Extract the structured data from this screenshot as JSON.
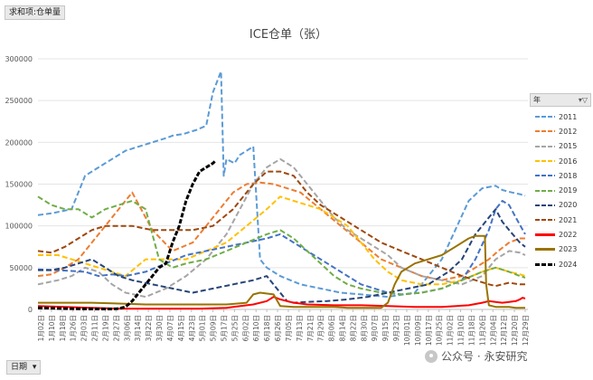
{
  "pivot": {
    "top_label": "求和项:仓单量",
    "bottom_label": "日期",
    "dropdown_glyph": "▾"
  },
  "legend_header": {
    "label": "年",
    "filter_icon": "filter-icon"
  },
  "watermark": {
    "text": "公众号 · 永安研究"
  },
  "chart_data": {
    "type": "line",
    "title": "ICE仓单（张）",
    "xlabel": "",
    "ylabel": "",
    "ylim": [
      0,
      300000
    ],
    "yticks": [
      0,
      50000,
      100000,
      150000,
      200000,
      250000,
      300000
    ],
    "xlim": [
      0,
      364
    ],
    "x_tick_labels": [
      "1月02日",
      "1月10日",
      "1月18日",
      "1月26日",
      "2月03日",
      "2月11日",
      "2月19日",
      "2月27日",
      "3月06日",
      "3月14日",
      "3月22日",
      "3月30日",
      "4月07日",
      "4月15日",
      "4月23日",
      "5月01日",
      "5月09日",
      "5月17日",
      "5月25日",
      "6月02日",
      "6月10日",
      "6月18日",
      "6月26日",
      "7月05日",
      "7月13日",
      "7月21日",
      "7月29日",
      "8月06日",
      "8月14日",
      "8月22日",
      "8月30日",
      "9月07日",
      "9月15日",
      "9月23日",
      "10月01日",
      "10月09日",
      "10月17日",
      "10月25日",
      "11月02日",
      "11月10日",
      "11月18日",
      "11月26日",
      "12月04日",
      "12月12日",
      "12月20日",
      "12月29日"
    ],
    "grid": true,
    "legend_position": "right",
    "series": [
      {
        "name": "2011",
        "color": "#5B9BD5",
        "dash": true,
        "x": [
          0,
          10,
          25,
          35,
          45,
          55,
          65,
          75,
          85,
          95,
          100,
          108,
          118,
          125,
          130,
          136,
          138,
          140,
          146,
          150,
          155,
          160,
          165,
          170,
          180,
          195,
          210,
          225,
          240,
          260,
          280,
          300,
          320,
          330,
          340,
          345,
          352,
          358,
          362
        ],
        "y": [
          113000,
          115000,
          120000,
          160000,
          170000,
          180000,
          190000,
          195000,
          200000,
          205000,
          208000,
          210000,
          215000,
          220000,
          260000,
          285000,
          160000,
          180000,
          175000,
          185000,
          190000,
          195000,
          60000,
          50000,
          40000,
          30000,
          25000,
          20000,
          18000,
          15000,
          20000,
          60000,
          130000,
          145000,
          148000,
          143000,
          140000,
          138000,
          136000
        ]
      },
      {
        "name": "2012",
        "color": "#ED7D31",
        "dash": true,
        "x": [
          0,
          10,
          20,
          30,
          40,
          50,
          60,
          70,
          85,
          100,
          115,
          125,
          135,
          145,
          155,
          165,
          175,
          185,
          195,
          210,
          225,
          240,
          255,
          270,
          285,
          300,
          315,
          325,
          335,
          342,
          350,
          358,
          362
        ],
        "y": [
          40000,
          42000,
          50000,
          60000,
          80000,
          100000,
          120000,
          140000,
          95000,
          70000,
          80000,
          100000,
          120000,
          140000,
          150000,
          152000,
          150000,
          145000,
          140000,
          120000,
          100000,
          80000,
          60000,
          50000,
          40000,
          35000,
          40000,
          50000,
          60000,
          70000,
          80000,
          85000,
          85000
        ]
      },
      {
        "name": "2015",
        "color": "#A5A5A5",
        "dash": true,
        "x": [
          0,
          15,
          25,
          35,
          45,
          55,
          65,
          80,
          95,
          110,
          125,
          140,
          150,
          160,
          170,
          180,
          190,
          200,
          210,
          220,
          230,
          240,
          250,
          260,
          270,
          285,
          300,
          315,
          330,
          340,
          350,
          358,
          362
        ],
        "y": [
          30000,
          35000,
          40000,
          50000,
          45000,
          30000,
          20000,
          15000,
          25000,
          40000,
          60000,
          90000,
          120000,
          150000,
          170000,
          180000,
          170000,
          150000,
          130000,
          110000,
          95000,
          85000,
          75000,
          65000,
          50000,
          40000,
          35000,
          30000,
          40000,
          60000,
          70000,
          68000,
          65000
        ]
      },
      {
        "name": "2016",
        "color": "#FFC000",
        "dash": true,
        "x": [
          0,
          15,
          25,
          35,
          45,
          55,
          65,
          80,
          95,
          110,
          125,
          140,
          155,
          170,
          180,
          190,
          200,
          210,
          220,
          230,
          240,
          250,
          260,
          270,
          285,
          300,
          315,
          330,
          340,
          350,
          358,
          362
        ],
        "y": [
          65000,
          65000,
          60000,
          55000,
          50000,
          45000,
          40000,
          60000,
          60000,
          60000,
          70000,
          80000,
          100000,
          120000,
          135000,
          130000,
          125000,
          120000,
          110000,
          100000,
          80000,
          60000,
          45000,
          35000,
          30000,
          30000,
          35000,
          45000,
          50000,
          45000,
          42000,
          40000
        ]
      },
      {
        "name": "2018",
        "color": "#4472C4",
        "dash": true,
        "x": [
          0,
          15,
          25,
          35,
          45,
          55,
          65,
          80,
          95,
          110,
          125,
          140,
          155,
          170,
          180,
          190,
          200,
          210,
          220,
          230,
          240,
          250,
          260,
          270,
          285,
          300,
          315,
          325,
          335,
          340,
          345,
          350,
          355,
          362
        ],
        "y": [
          48000,
          47000,
          46000,
          45000,
          40000,
          42000,
          40000,
          45000,
          55000,
          65000,
          70000,
          75000,
          80000,
          85000,
          90000,
          80000,
          70000,
          60000,
          50000,
          40000,
          30000,
          25000,
          20000,
          18000,
          20000,
          25000,
          35000,
          60000,
          95000,
          120000,
          130000,
          125000,
          110000,
          90000
        ]
      },
      {
        "name": "2019",
        "color": "#70AD47",
        "dash": true,
        "x": [
          0,
          10,
          20,
          30,
          40,
          50,
          60,
          70,
          80,
          90,
          100,
          110,
          125,
          140,
          155,
          170,
          180,
          190,
          200,
          210,
          220,
          230,
          240,
          255,
          270,
          285,
          300,
          315,
          330,
          340,
          350,
          358,
          362
        ],
        "y": [
          135000,
          125000,
          120000,
          120000,
          110000,
          120000,
          125000,
          130000,
          120000,
          60000,
          50000,
          55000,
          60000,
          70000,
          80000,
          90000,
          95000,
          85000,
          70000,
          55000,
          40000,
          30000,
          25000,
          20000,
          18000,
          20000,
          25000,
          35000,
          45000,
          50000,
          45000,
          40000,
          38000
        ]
      },
      {
        "name": "2020",
        "color": "#264478",
        "dash": true,
        "x": [
          0,
          10,
          20,
          30,
          40,
          50,
          60,
          70,
          85,
          100,
          115,
          130,
          145,
          160,
          170,
          180,
          185,
          190,
          200,
          215,
          230,
          245,
          260,
          275,
          290,
          305,
          315,
          325,
          335,
          340,
          345,
          350,
          358,
          362
        ],
        "y": [
          47000,
          47000,
          50000,
          55000,
          60000,
          50000,
          40000,
          35000,
          30000,
          25000,
          20000,
          25000,
          30000,
          35000,
          40000,
          20000,
          10000,
          8000,
          9000,
          10000,
          12000,
          15000,
          20000,
          25000,
          30000,
          45000,
          60000,
          90000,
          110000,
          120000,
          105000,
          95000,
          80000,
          75000
        ]
      },
      {
        "name": "2021",
        "color": "#9E480E",
        "dash": true,
        "x": [
          0,
          10,
          20,
          30,
          40,
          50,
          60,
          70,
          85,
          100,
          115,
          130,
          145,
          160,
          170,
          180,
          190,
          200,
          210,
          225,
          240,
          255,
          270,
          285,
          300,
          315,
          325,
          335,
          340,
          345,
          350,
          358,
          362
        ],
        "y": [
          70000,
          68000,
          75000,
          85000,
          95000,
          100000,
          100000,
          100000,
          95000,
          95000,
          95000,
          100000,
          120000,
          150000,
          165000,
          165000,
          160000,
          140000,
          125000,
          110000,
          95000,
          80000,
          70000,
          60000,
          50000,
          40000,
          35000,
          30000,
          28000,
          30000,
          32000,
          30000,
          30000
        ]
      },
      {
        "name": "2022",
        "color": "#FF0000",
        "solid": true,
        "x": [
          0,
          20,
          40,
          60,
          80,
          100,
          120,
          140,
          160,
          170,
          175,
          180,
          185,
          190,
          195,
          200,
          220,
          240,
          260,
          280,
          300,
          320,
          330,
          335,
          340,
          345,
          350,
          355,
          358,
          360,
          362
        ],
        "y": [
          4000,
          3000,
          2000,
          1000,
          1000,
          1000,
          1000,
          2000,
          6000,
          10000,
          15000,
          12000,
          10000,
          8000,
          7000,
          6000,
          5000,
          5000,
          4000,
          3000,
          3000,
          5000,
          8000,
          10000,
          9000,
          8000,
          9000,
          10000,
          12000,
          14000,
          13000
        ]
      },
      {
        "name": "2023",
        "color": "#997300",
        "solid": true,
        "x": [
          0,
          20,
          40,
          60,
          80,
          100,
          120,
          140,
          155,
          160,
          165,
          175,
          180,
          190,
          200,
          210,
          220,
          230,
          240,
          255,
          260,
          265,
          270,
          280,
          290,
          300,
          310,
          320,
          325,
          330,
          332,
          333,
          335,
          340,
          345,
          350,
          355,
          362
        ],
        "y": [
          8000,
          8000,
          8000,
          7000,
          6000,
          6000,
          6000,
          6000,
          8000,
          18000,
          20000,
          18000,
          4000,
          3000,
          3000,
          3000,
          3000,
          2000,
          2000,
          2000,
          8000,
          30000,
          45000,
          55000,
          60000,
          65000,
          75000,
          85000,
          88000,
          88000,
          88000,
          30000,
          5000,
          3000,
          3000,
          3000,
          2000,
          2000
        ]
      },
      {
        "name": "2024",
        "color": "#000000",
        "dash": true,
        "x": [
          0,
          20,
          40,
          55,
          60,
          65,
          70,
          75,
          80,
          85,
          90,
          95,
          100,
          105,
          110,
          115,
          120,
          125,
          130,
          132
        ],
        "y": [
          2000,
          1000,
          500,
          500,
          1000,
          3000,
          10000,
          20000,
          30000,
          40000,
          50000,
          55000,
          80000,
          100000,
          130000,
          150000,
          165000,
          170000,
          175000,
          178000
        ]
      }
    ]
  }
}
